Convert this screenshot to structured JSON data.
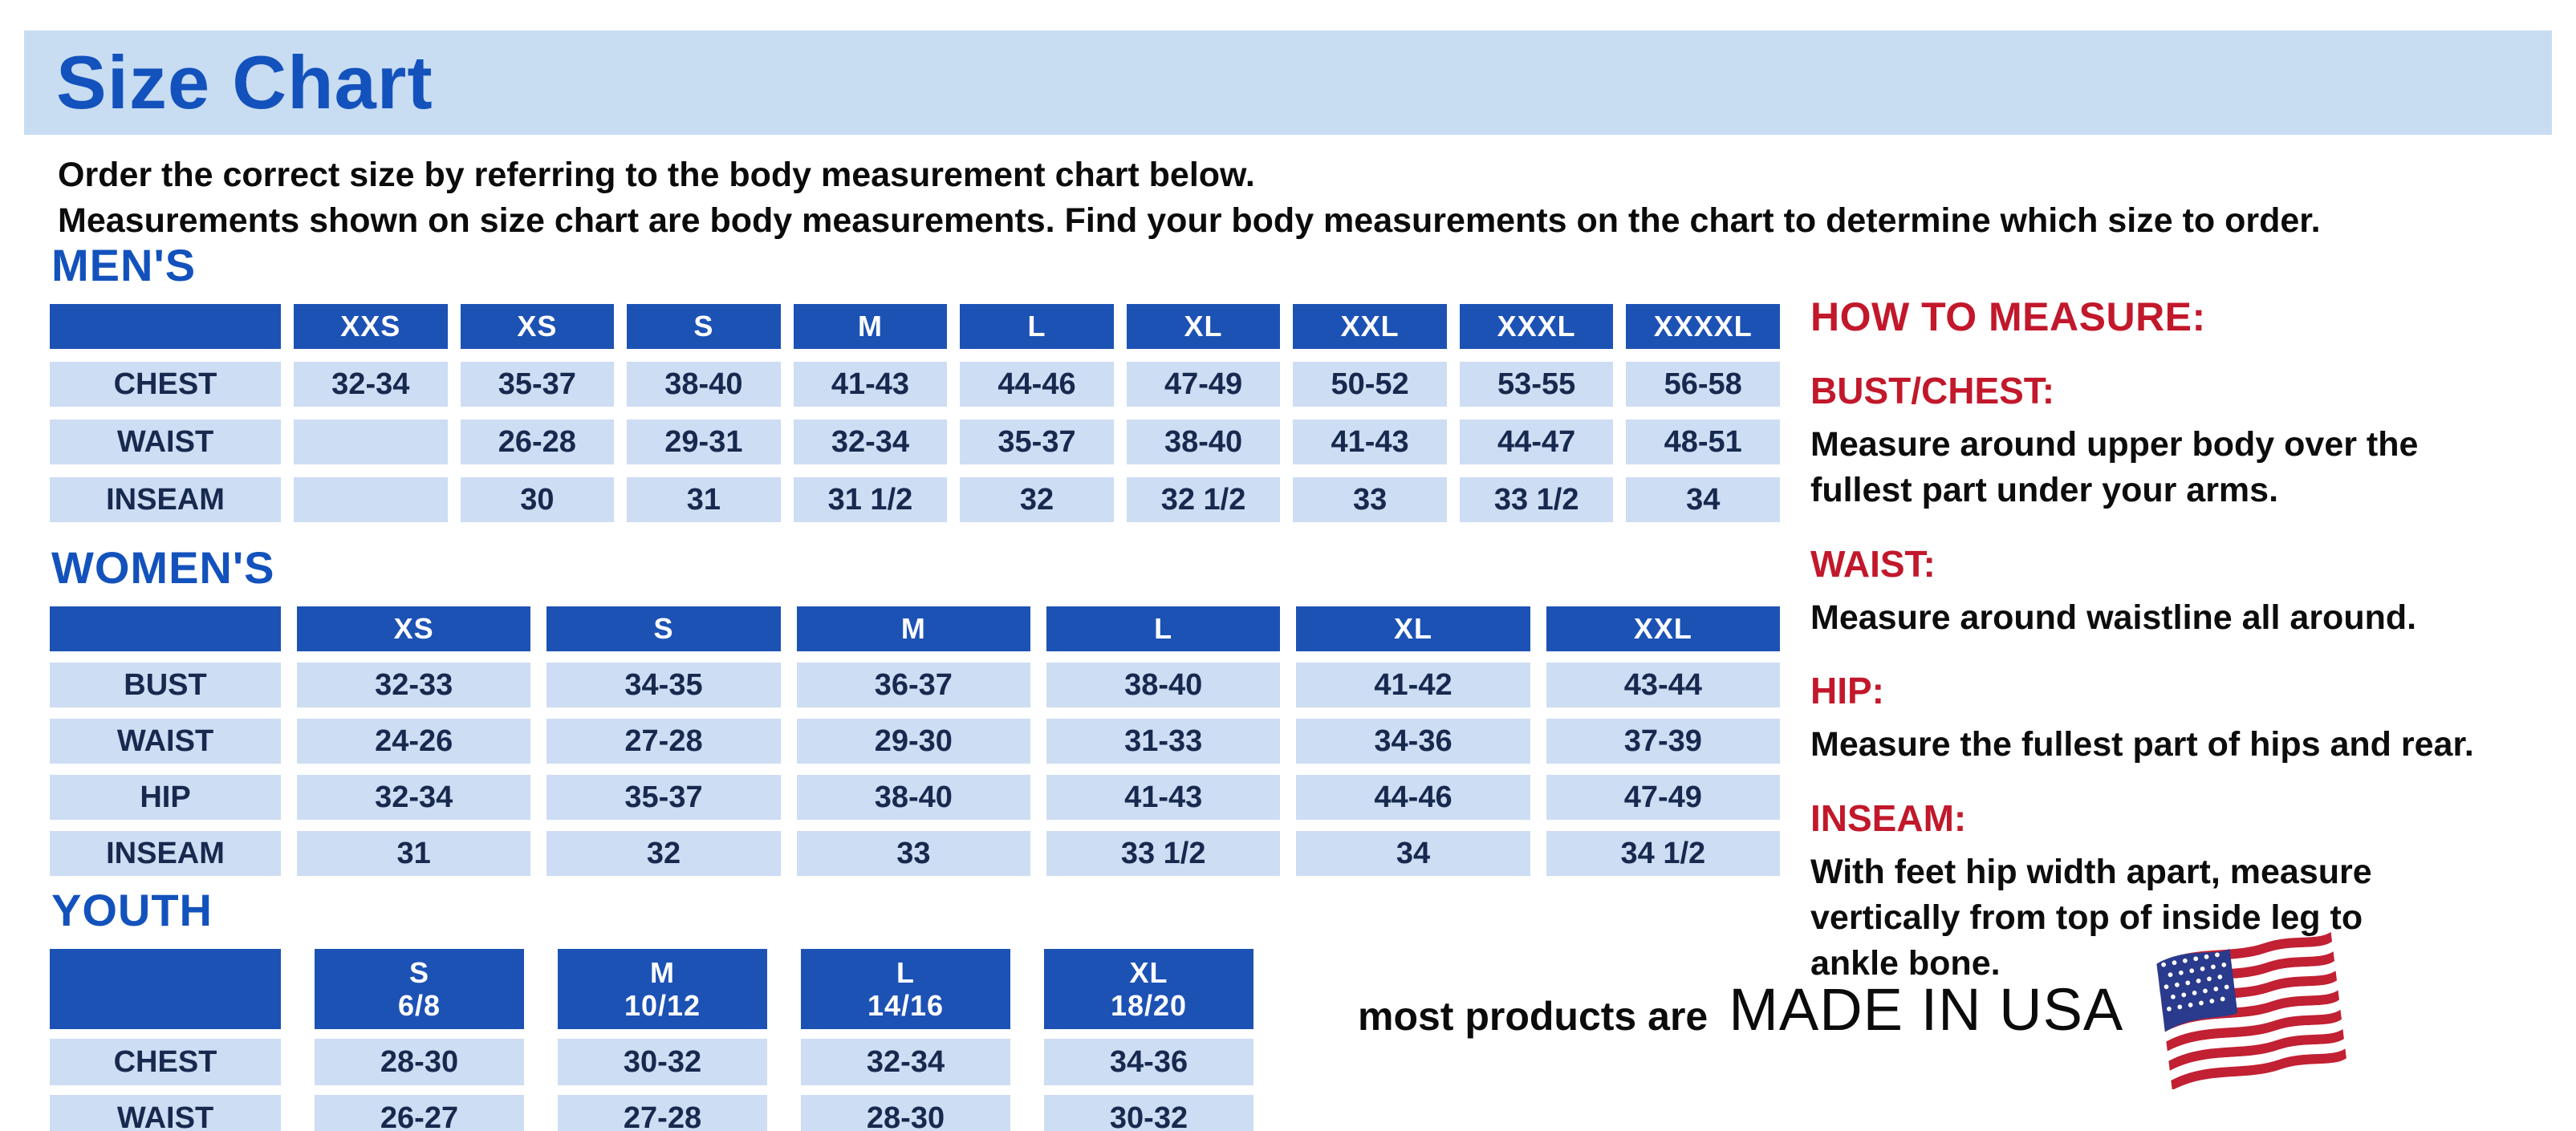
{
  "title": "Size Chart",
  "intro": {
    "line1": "Order the correct size by referring to the body measurement chart below.",
    "line2": "Measurements shown on size chart are body measurements.  Find your body measurements on the chart to determine which size to order."
  },
  "colors": {
    "title_blue": "#1352bc",
    "band_background": "#c8dcf2",
    "table_header_blue": "#1d52b5",
    "table_cell_blue": "#cdddf3",
    "table_text_navy": "#17294e",
    "accent_red": "#c2182b",
    "flag_red": "#c22033",
    "flag_blue": "#2a3a8c"
  },
  "sections": {
    "mens": {
      "heading": "MEN'S",
      "columns": [
        "",
        "XXS",
        "XS",
        "S",
        "M",
        "L",
        "XL",
        "XXL",
        "XXXL",
        "XXXXL"
      ],
      "rows": [
        {
          "label": "CHEST",
          "values": [
            "32-34",
            "35-37",
            "38-40",
            "41-43",
            "44-46",
            "47-49",
            "50-52",
            "53-55",
            "56-58"
          ]
        },
        {
          "label": "WAIST",
          "values": [
            "",
            "26-28",
            "29-31",
            "32-34",
            "35-37",
            "38-40",
            "41-43",
            "44-47",
            "48-51"
          ]
        },
        {
          "label": "INSEAM",
          "values": [
            "",
            "30",
            "31",
            "31 1/2",
            "32",
            "32 1/2",
            "33",
            "33 1/2",
            "34"
          ]
        }
      ]
    },
    "womens": {
      "heading": "WOMEN'S",
      "columns": [
        "",
        "XS",
        "S",
        "M",
        "L",
        "XL",
        "XXL"
      ],
      "rows": [
        {
          "label": "BUST",
          "values": [
            "32-33",
            "34-35",
            "36-37",
            "38-40",
            "41-42",
            "43-44"
          ]
        },
        {
          "label": "WAIST",
          "values": [
            "24-26",
            "27-28",
            "29-30",
            "31-33",
            "34-36",
            "37-39"
          ]
        },
        {
          "label": "HIP",
          "values": [
            "32-34",
            "35-37",
            "38-40",
            "41-43",
            "44-46",
            "47-49"
          ]
        },
        {
          "label": "INSEAM",
          "values": [
            "31",
            "32",
            "33",
            "33 1/2",
            "34",
            "34 1/2"
          ]
        }
      ]
    },
    "youth": {
      "heading": "YOUTH",
      "columns": [
        "",
        "S\n6/8",
        "M\n10/12",
        "L\n14/16",
        "XL\n18/20"
      ],
      "rows": [
        {
          "label": "CHEST",
          "values": [
            "28-30",
            "30-32",
            "32-34",
            "34-36"
          ]
        },
        {
          "label": "WAIST",
          "values": [
            "26-27",
            "27-28",
            "28-30",
            "30-32"
          ]
        }
      ]
    }
  },
  "measure_guide": {
    "heading": "HOW TO MEASURE:",
    "items": [
      {
        "label": "BUST/CHEST:",
        "text": "Measure around upper body over the\nfullest part under your arms."
      },
      {
        "label": "WAIST:",
        "text": "Measure around waistline all around."
      },
      {
        "label": "HIP:",
        "text": "Measure the fullest part of hips and rear."
      },
      {
        "label": "INSEAM:",
        "text": "With feet hip width apart, measure\nvertically from top of inside leg to\nankle bone."
      }
    ]
  },
  "footer": {
    "prefix": "most products are",
    "emphasis": "MADE IN USA",
    "flag_icon": "us-flag-icon"
  }
}
